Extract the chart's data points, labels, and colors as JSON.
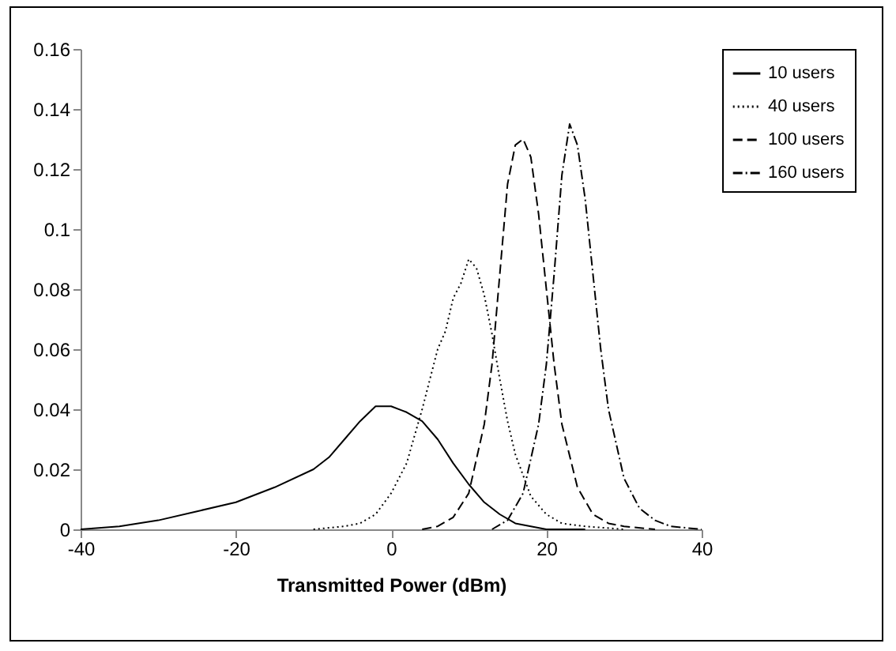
{
  "chart_data": {
    "type": "line",
    "xlabel": "Transmitted Power (dBm)",
    "xlim": [
      -40,
      40
    ],
    "xticks": [
      -40,
      -20,
      0,
      20,
      40
    ],
    "ylim": [
      0,
      0.16
    ],
    "yticks": [
      0,
      0.02,
      0.04,
      0.06,
      0.08,
      0.1,
      0.12,
      0.14,
      0.16
    ],
    "grid": false,
    "legend": "right",
    "marker": "none",
    "series": [
      {
        "name": "10 users",
        "color": "#000000",
        "line_style": "solid",
        "x": [
          -40,
          -35,
          -30,
          -25,
          -20,
          -15,
          -10,
          -8,
          -6,
          -4,
          -2,
          0,
          2,
          4,
          6,
          8,
          10,
          12,
          14,
          16,
          18,
          20,
          25
        ],
        "values": [
          0,
          0.001,
          0.003,
          0.006,
          0.009,
          0.014,
          0.02,
          0.024,
          0.03,
          0.036,
          0.041,
          0.041,
          0.039,
          0.036,
          0.03,
          0.022,
          0.015,
          0.009,
          0.005,
          0.002,
          0.001,
          0,
          0
        ]
      },
      {
        "name": "40 users",
        "color": "#000000",
        "line_style": "dotted",
        "x": [
          -10,
          -6,
          -4,
          -2,
          0,
          2,
          4,
          6,
          7,
          8,
          9,
          10,
          11,
          12,
          13,
          14,
          15,
          16,
          18,
          20,
          22,
          25,
          30
        ],
        "values": [
          0,
          0.001,
          0.002,
          0.005,
          0.012,
          0.022,
          0.04,
          0.06,
          0.066,
          0.077,
          0.082,
          0.09,
          0.087,
          0.078,
          0.065,
          0.05,
          0.036,
          0.025,
          0.011,
          0.005,
          0.002,
          0.001,
          0
        ]
      },
      {
        "name": "100 users",
        "color": "#000000",
        "line_style": "dashed",
        "x": [
          4,
          6,
          8,
          10,
          12,
          13,
          14,
          15,
          16,
          17,
          18,
          19,
          20,
          21,
          22,
          24,
          26,
          28,
          30,
          34
        ],
        "values": [
          0,
          0.001,
          0.004,
          0.012,
          0.035,
          0.055,
          0.085,
          0.115,
          0.128,
          0.13,
          0.124,
          0.105,
          0.08,
          0.055,
          0.035,
          0.014,
          0.005,
          0.002,
          0.001,
          0
        ]
      },
      {
        "name": "160 users",
        "color": "#000000",
        "line_style": "dashdot",
        "x": [
          13,
          15,
          17,
          19,
          20,
          21,
          22,
          23,
          24,
          25,
          26,
          27,
          28,
          30,
          32,
          34,
          36,
          40
        ],
        "values": [
          0,
          0.003,
          0.012,
          0.035,
          0.055,
          0.085,
          0.118,
          0.135,
          0.128,
          0.11,
          0.085,
          0.06,
          0.04,
          0.017,
          0.007,
          0.003,
          0.001,
          0
        ]
      }
    ]
  }
}
